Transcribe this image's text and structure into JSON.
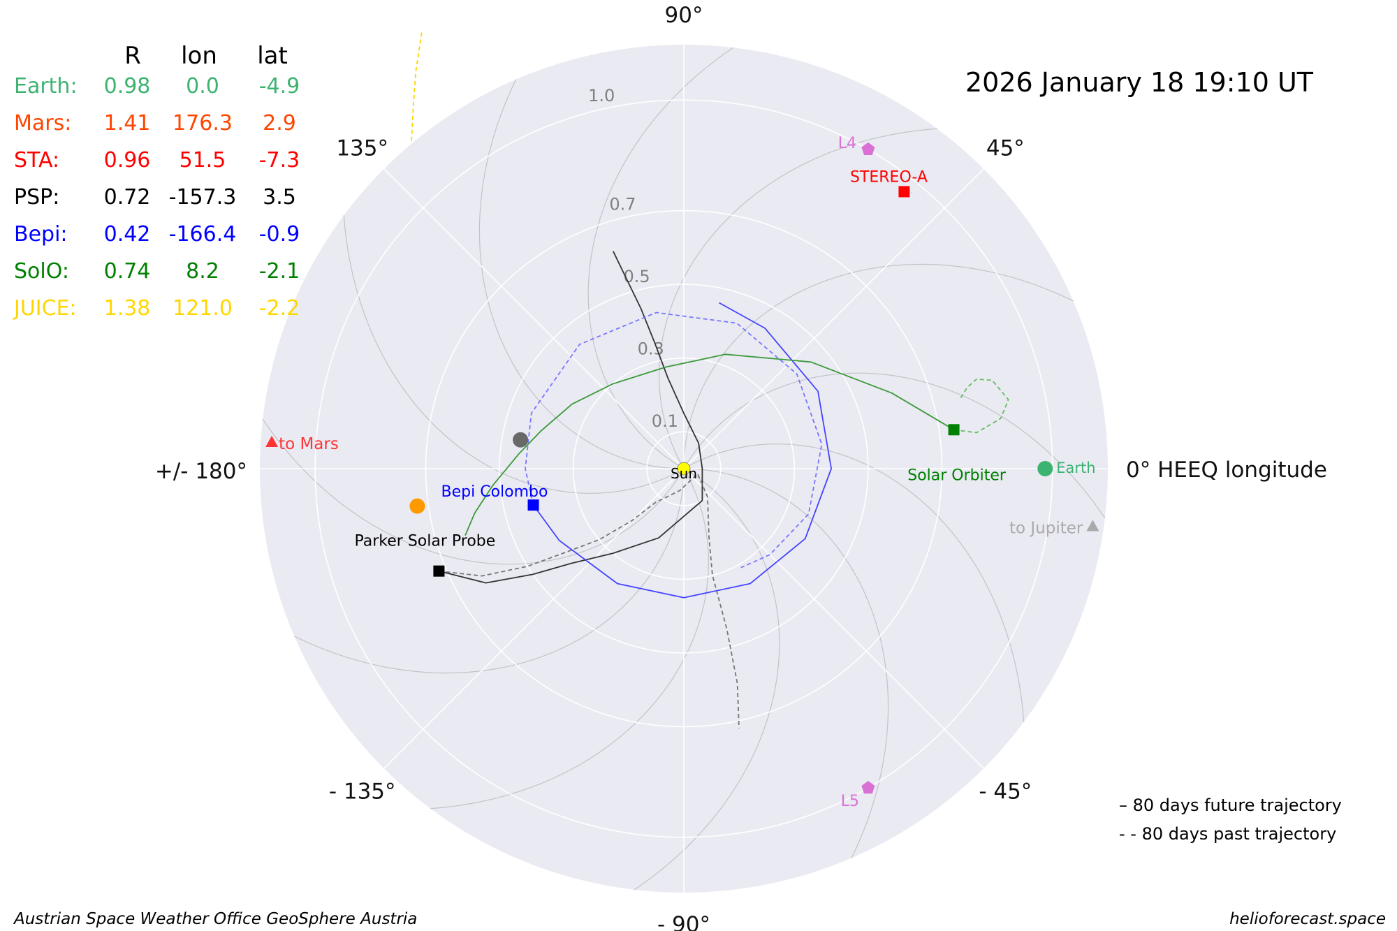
{
  "title": "2026 January 18  19:10 UT",
  "table": {
    "headers": [
      "R",
      "lon",
      "lat"
    ],
    "rows": [
      {
        "name": "Earth:",
        "R": "0.98",
        "lon": "0.0",
        "lat": "-4.9",
        "color": "#3cb371"
      },
      {
        "name": "Mars:",
        "R": "1.41",
        "lon": "176.3",
        "lat": "2.9",
        "color": "#ff4500"
      },
      {
        "name": "STA:",
        "R": "0.96",
        "lon": "51.5",
        "lat": "-7.3",
        "color": "#ff0000"
      },
      {
        "name": "PSP:",
        "R": "0.72",
        "lon": "-157.3",
        "lat": "3.5",
        "color": "#000000"
      },
      {
        "name": "Bepi:",
        "R": "0.42",
        "lon": "-166.4",
        "lat": "-0.9",
        "color": "#0000ff"
      },
      {
        "name": "SolO:",
        "R": "0.74",
        "lon": "8.2",
        "lat": "-2.1",
        "color": "#008000"
      },
      {
        "name": "JUICE:",
        "R": "1.38",
        "lon": "121.0",
        "lat": "-2.2",
        "color": "#ffd700"
      }
    ]
  },
  "legend": {
    "future": "–   80 days future trajectory",
    "past": "- -  80 days past trajectory"
  },
  "footer": {
    "left": "Austrian Space Weather Office   GeoSphere Austria",
    "right": "helioforecast.space"
  },
  "chart_data": {
    "type": "scatter",
    "projection": "polar",
    "theta_axis_label": "0° HEEQ longitude",
    "theta_ticks": [
      {
        "deg": 0,
        "label": "0° HEEQ longitude"
      },
      {
        "deg": 45,
        "label": "45°"
      },
      {
        "deg": 90,
        "label": "90°"
      },
      {
        "deg": 135,
        "label": "135°"
      },
      {
        "deg": 180,
        "label": "+/- 180°"
      },
      {
        "deg": -135,
        "label": "- 135°"
      },
      {
        "deg": -90,
        "label": "- 90°"
      },
      {
        "deg": -45,
        "label": "- 45°"
      }
    ],
    "r_ticks": [
      {
        "value": 0.1,
        "label": "0.1"
      },
      {
        "value": 0.3,
        "label": "0.3"
      },
      {
        "value": 0.5,
        "label": "0.5"
      },
      {
        "value": 0.7,
        "label": "0.7"
      },
      {
        "value": 1.0,
        "label": "1.0"
      }
    ],
    "r_max": 1.15,
    "grid": true,
    "objects": [
      {
        "name": "Earth",
        "label": "Earth",
        "r": 0.98,
        "lon": 0.0,
        "marker": "circle",
        "color": "#3cb371"
      },
      {
        "name": "STEREO-A",
        "label": "STEREO-A",
        "r": 0.96,
        "lon": 51.5,
        "marker": "square",
        "color": "#ff0000"
      },
      {
        "name": "Parker Solar Probe",
        "label": "Parker Solar Probe",
        "r": 0.72,
        "lon": -157.3,
        "marker": "square",
        "color": "#000000"
      },
      {
        "name": "Bepi Colombo",
        "label": "Bepi Colombo",
        "r": 0.42,
        "lon": -166.4,
        "marker": "square",
        "color": "#0000ff"
      },
      {
        "name": "Solar Orbiter",
        "label": "Solar Orbiter",
        "r": 0.74,
        "lon": 8.2,
        "marker": "square",
        "color": "#008000"
      },
      {
        "name": "Sun",
        "label": "Sun",
        "r": 0.0,
        "lon": 0.0,
        "marker": "circle",
        "color": "#ffff00"
      },
      {
        "name": "L4",
        "label": "L4",
        "r": 1.0,
        "lon": 60.0,
        "marker": "pentagon",
        "color": "#da70d6"
      },
      {
        "name": "L5",
        "label": "L5",
        "r": 1.0,
        "lon": -60.0,
        "marker": "pentagon",
        "color": "#da70d6"
      },
      {
        "name": "Mercury",
        "label": "",
        "r": 0.45,
        "lon": 170.0,
        "marker": "circle",
        "color": "#696969"
      },
      {
        "name": "Venus",
        "label": "",
        "r": 0.73,
        "lon": -172.0,
        "marker": "circle",
        "color": "#ff9900"
      }
    ],
    "direction_markers": [
      {
        "name": "Mars",
        "label": "to Mars",
        "lon": 176.3,
        "color": "#ff3333"
      },
      {
        "name": "Jupiter",
        "label": "to Jupiter",
        "lon": -8.0,
        "color": "#aaaaaa"
      }
    ],
    "trajectories": [
      {
        "name": "PSP future",
        "color": "#333333",
        "style": "solid",
        "points": [
          [
            0.72,
            -157.3
          ],
          [
            0.62,
            -150
          ],
          [
            0.5,
            -145
          ],
          [
            0.4,
            -140
          ],
          [
            0.3,
            -130
          ],
          [
            0.2,
            -110
          ],
          [
            0.1,
            -60
          ],
          [
            0.05,
            0
          ],
          [
            0.08,
            60
          ],
          [
            0.15,
            90
          ],
          [
            0.25,
            100
          ],
          [
            0.35,
            103
          ],
          [
            0.45,
            105
          ],
          [
            0.55,
            107
          ],
          [
            0.62,
            108
          ]
        ]
      },
      {
        "name": "PSP past",
        "color": "#777777",
        "style": "dashed",
        "points": [
          [
            0.72,
            -157.3
          ],
          [
            0.62,
            -152
          ],
          [
            0.5,
            -148
          ],
          [
            0.4,
            -145
          ],
          [
            0.3,
            -140
          ],
          [
            0.2,
            -135
          ],
          [
            0.12,
            -130
          ],
          [
            0.06,
            -100
          ],
          [
            0.04,
            -20
          ],
          [
            0.1,
            -50
          ],
          [
            0.2,
            -70
          ],
          [
            0.3,
            -75
          ],
          [
            0.45,
            -75
          ],
          [
            0.6,
            -76
          ],
          [
            0.72,
            -78
          ]
        ]
      },
      {
        "name": "Bepi future",
        "color": "#4444ff",
        "style": "solid",
        "points": [
          [
            0.42,
            -166.4
          ],
          [
            0.39,
            -150
          ],
          [
            0.36,
            -120
          ],
          [
            0.35,
            -90
          ],
          [
            0.36,
            -60
          ],
          [
            0.38,
            -30
          ],
          [
            0.4,
            0
          ],
          [
            0.42,
            30
          ],
          [
            0.44,
            60
          ],
          [
            0.46,
            78
          ]
        ]
      },
      {
        "name": "Bepi past",
        "color": "#7777ff",
        "style": "dashed",
        "points": [
          [
            0.42,
            -166.4
          ],
          [
            0.43,
            -180
          ],
          [
            0.44,
            160
          ],
          [
            0.44,
            130
          ],
          [
            0.43,
            100
          ],
          [
            0.42,
            70
          ],
          [
            0.4,
            40
          ],
          [
            0.38,
            10
          ],
          [
            0.36,
            -20
          ],
          [
            0.33,
            -45
          ],
          [
            0.31,
            -60
          ]
        ]
      },
      {
        "name": "SolO future",
        "color": "#3a9a3a",
        "style": "solid",
        "points": [
          [
            0.74,
            8.2
          ],
          [
            0.6,
            20
          ],
          [
            0.45,
            40
          ],
          [
            0.33,
            70
          ],
          [
            0.28,
            100
          ],
          [
            0.3,
            130
          ],
          [
            0.35,
            150
          ],
          [
            0.4,
            165
          ],
          [
            0.45,
            175
          ],
          [
            0.52,
            -175
          ],
          [
            0.58,
            -168
          ],
          [
            0.62,
            -163
          ]
        ]
      },
      {
        "name": "SolO past",
        "color": "#66bb66",
        "style": "dashed",
        "points": [
          [
            0.74,
            8.2
          ],
          [
            0.8,
            7
          ],
          [
            0.87,
            9
          ],
          [
            0.9,
            12
          ],
          [
            0.87,
            16
          ],
          [
            0.83,
            17
          ],
          [
            0.8,
            16
          ],
          [
            0.77,
            14
          ]
        ]
      },
      {
        "name": "STA past",
        "color": "#ff6666",
        "style": "dashed",
        "points": [
          [
            0.96,
            51.5
          ],
          [
            0.97,
            50.5
          ]
        ]
      },
      {
        "name": "JUICE past",
        "color": "#ffd700",
        "style": "dashed",
        "points": [
          [
            1.38,
            121.0
          ],
          [
            1.3,
            124
          ],
          [
            1.22,
            127
          ],
          [
            1.15,
            130
          ]
        ]
      }
    ]
  }
}
